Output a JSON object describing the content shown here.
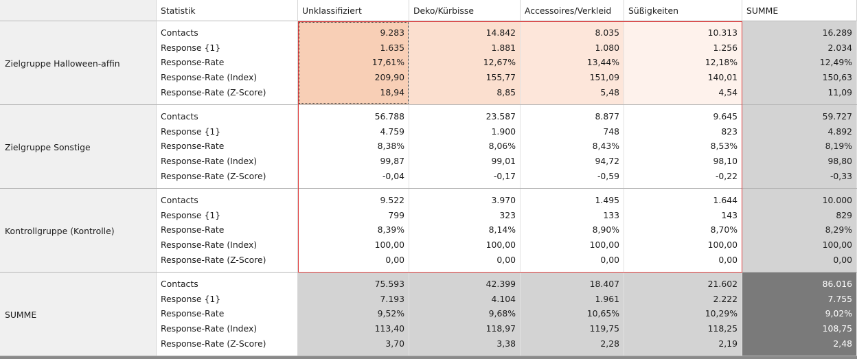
{
  "header": {
    "corner": "",
    "stat": "Statistik",
    "columns": [
      "Unklassifiziert",
      "Deko/Kürbisse",
      "Accessoires/Verkleid",
      "Süßigkeiten",
      "SUMME"
    ]
  },
  "stat_labels": [
    "Contacts",
    "Response {1}",
    "Response-Rate",
    "Response-Rate (Index)",
    "Response-Rate (Z-Score)"
  ],
  "groups": [
    {
      "label": "Zielgruppe Halloween-affin",
      "cells": [
        [
          "9.283",
          "1.635",
          "17,61%",
          "209,90",
          "18,94"
        ],
        [
          "14.842",
          "1.881",
          "12,67%",
          "155,77",
          "8,85"
        ],
        [
          "8.035",
          "1.080",
          "13,44%",
          "151,09",
          "5,48"
        ],
        [
          "10.313",
          "1.256",
          "12,18%",
          "140,01",
          "4,54"
        ],
        [
          "16.289",
          "2.034",
          "12,49%",
          "150,63",
          "11,09"
        ]
      ]
    },
    {
      "label": "Zielgruppe Sonstige",
      "cells": [
        [
          "56.788",
          "4.759",
          "8,38%",
          "99,87",
          "-0,04"
        ],
        [
          "23.587",
          "1.900",
          "8,06%",
          "99,01",
          "-0,17"
        ],
        [
          "8.877",
          "748",
          "8,43%",
          "94,72",
          "-0,59"
        ],
        [
          "9.645",
          "823",
          "8,53%",
          "98,10",
          "-0,22"
        ],
        [
          "59.727",
          "4.892",
          "8,19%",
          "98,80",
          "-0,33"
        ]
      ]
    },
    {
      "label": "Kontrollgruppe (Kontrolle)",
      "cells": [
        [
          "9.522",
          "799",
          "8,39%",
          "100,00",
          "0,00"
        ],
        [
          "3.970",
          "323",
          "8,14%",
          "100,00",
          "0,00"
        ],
        [
          "1.495",
          "133",
          "8,90%",
          "100,00",
          "0,00"
        ],
        [
          "1.644",
          "143",
          "8,70%",
          "100,00",
          "0,00"
        ],
        [
          "10.000",
          "829",
          "8,29%",
          "100,00",
          "0,00"
        ]
      ]
    },
    {
      "label": "SUMME",
      "cells": [
        [
          "75.593",
          "7.193",
          "9,52%",
          "113,40",
          "3,70"
        ],
        [
          "42.399",
          "4.104",
          "9,68%",
          "118,97",
          "3,38"
        ],
        [
          "18.407",
          "1.961",
          "10,65%",
          "119,75",
          "2,28"
        ],
        [
          "21.602",
          "2.222",
          "10,29%",
          "118,25",
          "2,19"
        ],
        [
          "86.016",
          "7.755",
          "9,02%",
          "108,75",
          "2,48"
        ]
      ]
    }
  ],
  "colors": {
    "heat": [
      [
        "#f8cfb6",
        "#fbdfcf",
        "#fde6da",
        "#fef2ec",
        "#d3d3d3"
      ],
      [
        "#ffffff",
        "#ffffff",
        "#ffffff",
        "#ffffff",
        "#d3d3d3"
      ],
      [
        "#ffffff",
        "#ffffff",
        "#ffffff",
        "#ffffff",
        "#d3d3d3"
      ],
      [
        "#d3d3d3",
        "#d3d3d3",
        "#d3d3d3",
        "#d3d3d3",
        "#7a7a7a"
      ]
    ],
    "highlight_border": "#e03c3c",
    "row_label_bg": "#f0f0f0"
  }
}
